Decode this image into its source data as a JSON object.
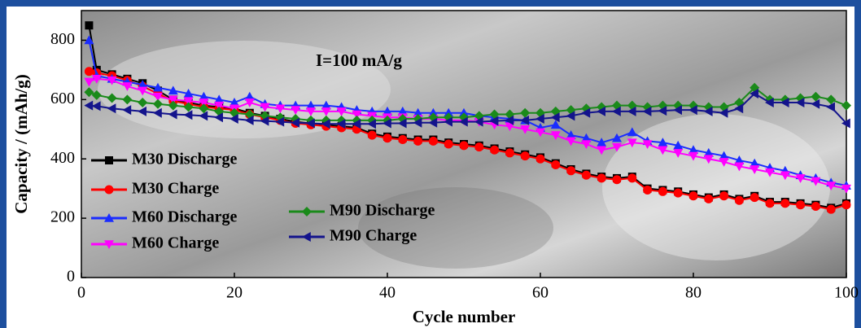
{
  "chart_data": {
    "type": "line",
    "annotation": "I=100 mA/g",
    "x_label": "Cycle number",
    "y_label": "Capacity / (mAh/g)",
    "xlim": [
      0,
      100
    ],
    "xticks": [
      0,
      20,
      40,
      60,
      80,
      100
    ],
    "ylim": [
      0,
      900
    ],
    "yticks": [
      0,
      200,
      400,
      600,
      800
    ],
    "legend": "lower left",
    "x": [
      1,
      2,
      4,
      6,
      8,
      10,
      12,
      14,
      16,
      18,
      20,
      22,
      24,
      26,
      28,
      30,
      32,
      34,
      36,
      38,
      40,
      42,
      44,
      46,
      48,
      50,
      52,
      54,
      56,
      58,
      60,
      62,
      64,
      66,
      68,
      70,
      72,
      74,
      76,
      78,
      80,
      82,
      84,
      86,
      88,
      90,
      92,
      94,
      96,
      98,
      100
    ],
    "series": [
      {
        "name": "M30 Discharge",
        "color": "#000000",
        "marker": "square",
        "values": [
          850,
          700,
          685,
          670,
          655,
          630,
          600,
          590,
          580,
          575,
          570,
          555,
          545,
          535,
          525,
          520,
          515,
          510,
          505,
          485,
          475,
          470,
          465,
          465,
          455,
          450,
          445,
          435,
          425,
          415,
          405,
          385,
          365,
          350,
          340,
          335,
          340,
          300,
          295,
          290,
          280,
          270,
          280,
          265,
          275,
          255,
          255,
          250,
          245,
          235,
          250
        ]
      },
      {
        "name": "M30 Charge",
        "color": "#ff0000",
        "marker": "circle",
        "values": [
          695,
          690,
          680,
          665,
          645,
          620,
          595,
          585,
          575,
          570,
          565,
          550,
          540,
          530,
          520,
          515,
          510,
          505,
          500,
          480,
          470,
          465,
          460,
          460,
          450,
          445,
          440,
          430,
          420,
          410,
          400,
          380,
          360,
          345,
          335,
          330,
          335,
          295,
          290,
          285,
          275,
          265,
          275,
          260,
          270,
          250,
          250,
          245,
          240,
          230,
          245
        ]
      },
      {
        "name": "M60 Discharge",
        "color": "#1a2cff",
        "marker": "triangle-up",
        "values": [
          800,
          680,
          670,
          660,
          650,
          640,
          630,
          620,
          610,
          600,
          590,
          610,
          585,
          580,
          580,
          580,
          580,
          575,
          565,
          560,
          560,
          560,
          555,
          555,
          555,
          555,
          545,
          540,
          535,
          530,
          505,
          515,
          480,
          470,
          455,
          470,
          490,
          460,
          455,
          445,
          430,
          420,
          410,
          395,
          385,
          370,
          360,
          345,
          335,
          320,
          310
        ]
      },
      {
        "name": "M60 Charge",
        "color": "#ff00ff",
        "marker": "triangle-down",
        "values": [
          660,
          670,
          665,
          645,
          630,
          610,
          600,
          595,
          590,
          580,
          570,
          590,
          575,
          570,
          565,
          560,
          560,
          560,
          550,
          545,
          540,
          540,
          535,
          535,
          530,
          530,
          525,
          515,
          510,
          500,
          490,
          480,
          460,
          450,
          430,
          440,
          455,
          450,
          430,
          420,
          410,
          400,
          390,
          375,
          365,
          355,
          345,
          335,
          325,
          310,
          300
        ]
      },
      {
        "name": "M90 Discharge",
        "color": "#1a8a1a",
        "marker": "diamond",
        "values": [
          625,
          615,
          605,
          600,
          590,
          585,
          580,
          575,
          570,
          560,
          555,
          550,
          545,
          540,
          535,
          530,
          530,
          530,
          530,
          530,
          530,
          535,
          535,
          540,
          540,
          540,
          545,
          550,
          550,
          555,
          555,
          560,
          565,
          570,
          575,
          580,
          580,
          575,
          580,
          580,
          580,
          575,
          575,
          590,
          640,
          600,
          600,
          605,
          610,
          600,
          580
        ]
      },
      {
        "name": "M90 Charge",
        "color": "#14148c",
        "marker": "triangle-left",
        "values": [
          580,
          578,
          570,
          565,
          560,
          555,
          550,
          548,
          545,
          540,
          535,
          530,
          528,
          525,
          522,
          520,
          518,
          518,
          518,
          518,
          520,
          520,
          522,
          522,
          525,
          525,
          525,
          528,
          530,
          530,
          535,
          540,
          545,
          555,
          560,
          560,
          560,
          560,
          562,
          565,
          565,
          560,
          555,
          570,
          620,
          590,
          590,
          590,
          585,
          575,
          520
        ]
      }
    ]
  }
}
